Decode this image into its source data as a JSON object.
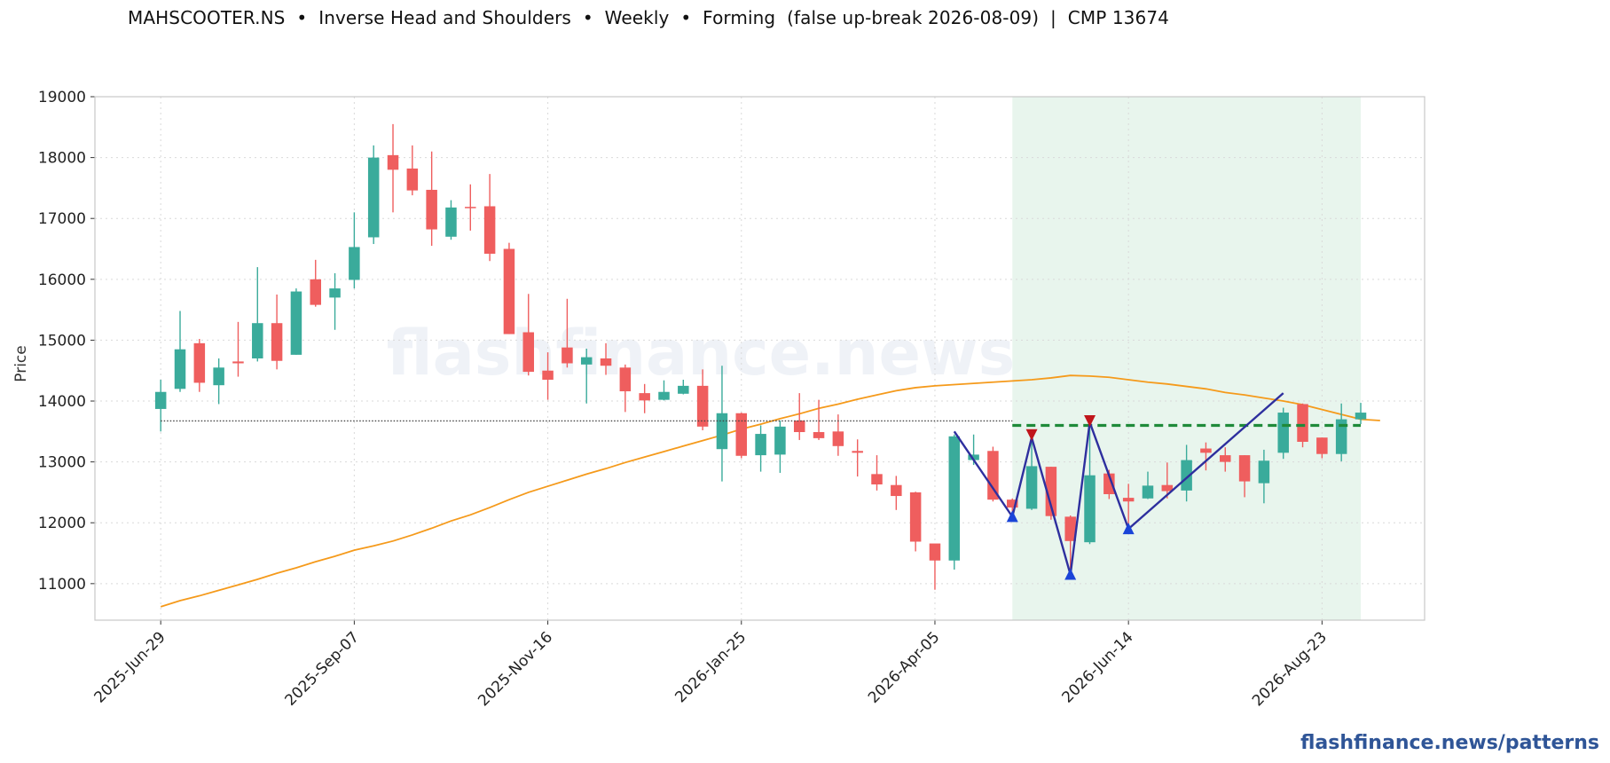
{
  "title": "MAHSCOOTER.NS  •  Inverse Head and Shoulders  •  Weekly  •  Forming  (false up-break 2026-08-09)  |  CMP 13674",
  "watermark": "flashfinance.news",
  "brand": "flashfinance.news/patterns",
  "colors": {
    "up": "#3aab9b",
    "down": "#ef5e5e",
    "ma": "#f59a1b",
    "neckline": "#1f8a3a",
    "pattern_line": "#2e2f9e",
    "trough_marker": "#1a44d8",
    "peak_marker": "#c0151b",
    "cmp_line": "#444444",
    "highlight": "#e4f3ea"
  },
  "chart_data": {
    "type": "candlestick",
    "ylabel": "Price",
    "ylim": [
      10400,
      19000
    ],
    "yticks": [
      11000,
      12000,
      13000,
      14000,
      15000,
      16000,
      17000,
      18000,
      19000
    ],
    "grid": true,
    "xtick_labels": [
      "2025-Jun-29",
      "2025-Sep-07",
      "2025-Nov-16",
      "2026-Jan-25",
      "2026-Apr-05",
      "2026-Jun-14",
      "2026-Aug-23"
    ],
    "xtick_positions": [
      0,
      10,
      20,
      30,
      40,
      50,
      60
    ],
    "cmp": 13674,
    "neckline": {
      "value": 13600,
      "from_index": 44,
      "to_index": 62
    },
    "pattern_window": {
      "from_index": 44,
      "to_index": 62
    },
    "candles": [
      {
        "date": "2025-Jun-29",
        "o": 13870,
        "h": 14350,
        "l": 13500,
        "c": 14150
      },
      {
        "date": "2025-Jul-06",
        "o": 14200,
        "h": 15480,
        "l": 14150,
        "c": 14850
      },
      {
        "date": "2025-Jul-13",
        "o": 14950,
        "h": 15020,
        "l": 14150,
        "c": 14300
      },
      {
        "date": "2025-Jul-20",
        "o": 14260,
        "h": 14700,
        "l": 13950,
        "c": 14550
      },
      {
        "date": "2025-Jul-27",
        "o": 14650,
        "h": 15300,
        "l": 14400,
        "c": 14620
      },
      {
        "date": "2025-Aug-03",
        "o": 14700,
        "h": 16200,
        "l": 14650,
        "c": 15280
      },
      {
        "date": "2025-Aug-10",
        "o": 15280,
        "h": 15750,
        "l": 14520,
        "c": 14660
      },
      {
        "date": "2025-Aug-17",
        "o": 14760,
        "h": 15850,
        "l": 14760,
        "c": 15800
      },
      {
        "date": "2025-Aug-24",
        "o": 16000,
        "h": 16320,
        "l": 15550,
        "c": 15580
      },
      {
        "date": "2025-Aug-31",
        "o": 15700,
        "h": 16100,
        "l": 15170,
        "c": 15850
      },
      {
        "date": "2025-Sep-07",
        "o": 15990,
        "h": 17100,
        "l": 15850,
        "c": 16530
      },
      {
        "date": "2025-Sep-14",
        "o": 16690,
        "h": 18200,
        "l": 16580,
        "c": 18000
      },
      {
        "date": "2025-Sep-21",
        "o": 18040,
        "h": 18550,
        "l": 17100,
        "c": 17800
      },
      {
        "date": "2025-Sep-28",
        "o": 17820,
        "h": 18200,
        "l": 17380,
        "c": 17460
      },
      {
        "date": "2025-Oct-05",
        "o": 17470,
        "h": 18100,
        "l": 16550,
        "c": 16820
      },
      {
        "date": "2025-Oct-12",
        "o": 16700,
        "h": 17300,
        "l": 16650,
        "c": 17180
      },
      {
        "date": "2025-Oct-19",
        "o": 17190,
        "h": 17560,
        "l": 16800,
        "c": 17170
      },
      {
        "date": "2025-Oct-26",
        "o": 17200,
        "h": 17730,
        "l": 16300,
        "c": 16420
      },
      {
        "date": "2025-Nov-02",
        "o": 16500,
        "h": 16600,
        "l": 15100,
        "c": 15100
      },
      {
        "date": "2025-Nov-09",
        "o": 15130,
        "h": 15760,
        "l": 14420,
        "c": 14480
      },
      {
        "date": "2025-Nov-16",
        "o": 14500,
        "h": 14800,
        "l": 14020,
        "c": 14350
      },
      {
        "date": "2025-Nov-23",
        "o": 14880,
        "h": 15680,
        "l": 14550,
        "c": 14620
      },
      {
        "date": "2025-Nov-30",
        "o": 14600,
        "h": 14860,
        "l": 13960,
        "c": 14720
      },
      {
        "date": "2025-Dec-07",
        "o": 14700,
        "h": 14950,
        "l": 14430,
        "c": 14580
      },
      {
        "date": "2025-Dec-14",
        "o": 14550,
        "h": 14600,
        "l": 13820,
        "c": 14160
      },
      {
        "date": "2025-Dec-21",
        "o": 14130,
        "h": 14280,
        "l": 13800,
        "c": 14010
      },
      {
        "date": "2025-Dec-28",
        "o": 14020,
        "h": 14340,
        "l": 14010,
        "c": 14150
      },
      {
        "date": "2026-Jan-04",
        "o": 14120,
        "h": 14350,
        "l": 14110,
        "c": 14250
      },
      {
        "date": "2026-Jan-11",
        "o": 14250,
        "h": 14520,
        "l": 13520,
        "c": 13580
      },
      {
        "date": "2026-Jan-18",
        "o": 13210,
        "h": 14580,
        "l": 12680,
        "c": 13800
      },
      {
        "date": "2026-Jan-25",
        "o": 13800,
        "h": 13810,
        "l": 13060,
        "c": 13100
      },
      {
        "date": "2026-Feb-01",
        "o": 13110,
        "h": 13600,
        "l": 12840,
        "c": 13460
      },
      {
        "date": "2026-Feb-08",
        "o": 13120,
        "h": 13680,
        "l": 12820,
        "c": 13580
      },
      {
        "date": "2026-Feb-15",
        "o": 13680,
        "h": 14130,
        "l": 13360,
        "c": 13490
      },
      {
        "date": "2026-Feb-22",
        "o": 13490,
        "h": 14020,
        "l": 13360,
        "c": 13390
      },
      {
        "date": "2026-Mar-01",
        "o": 13500,
        "h": 13780,
        "l": 13100,
        "c": 13260
      },
      {
        "date": "2026-Mar-08",
        "o": 13180,
        "h": 13370,
        "l": 12760,
        "c": 13150
      },
      {
        "date": "2026-Mar-15",
        "o": 12800,
        "h": 13110,
        "l": 12530,
        "c": 12630
      },
      {
        "date": "2026-Mar-22",
        "o": 12620,
        "h": 12770,
        "l": 12210,
        "c": 12440
      },
      {
        "date": "2026-Mar-29",
        "o": 12500,
        "h": 12510,
        "l": 11530,
        "c": 11690
      },
      {
        "date": "2026-Apr-05",
        "o": 11660,
        "h": 11650,
        "l": 10900,
        "c": 11380
      },
      {
        "date": "2026-Apr-12",
        "o": 11380,
        "h": 13450,
        "l": 11230,
        "c": 13420
      },
      {
        "date": "2026-Apr-19",
        "o": 13030,
        "h": 13450,
        "l": 12950,
        "c": 13120
      },
      {
        "date": "2026-Apr-26",
        "o": 13180,
        "h": 13250,
        "l": 12350,
        "c": 12380
      },
      {
        "date": "2026-May-03",
        "o": 12380,
        "h": 12400,
        "l": 12110,
        "c": 12250
      },
      {
        "date": "2026-May-10",
        "o": 12230,
        "h": 13350,
        "l": 12210,
        "c": 12930
      },
      {
        "date": "2026-May-17",
        "o": 12920,
        "h": 12920,
        "l": 12050,
        "c": 12110
      },
      {
        "date": "2026-May-24",
        "o": 12100,
        "h": 12120,
        "l": 11180,
        "c": 11700
      },
      {
        "date": "2026-May-31",
        "o": 11680,
        "h": 13650,
        "l": 11650,
        "c": 12780
      },
      {
        "date": "2026-Jun-07",
        "o": 12810,
        "h": 12870,
        "l": 12390,
        "c": 12470
      },
      {
        "date": "2026-Jun-14",
        "o": 12410,
        "h": 12640,
        "l": 11960,
        "c": 12350
      },
      {
        "date": "2026-Jun-21",
        "o": 12400,
        "h": 12840,
        "l": 12390,
        "c": 12610
      },
      {
        "date": "2026-Jun-28",
        "o": 12620,
        "h": 12990,
        "l": 12400,
        "c": 12520
      },
      {
        "date": "2026-Jul-05",
        "o": 12530,
        "h": 13280,
        "l": 12350,
        "c": 13030
      },
      {
        "date": "2026-Jul-12",
        "o": 13220,
        "h": 13320,
        "l": 12860,
        "c": 13150
      },
      {
        "date": "2026-Jul-19",
        "o": 13110,
        "h": 13240,
        "l": 12840,
        "c": 13000
      },
      {
        "date": "2026-Jul-26",
        "o": 13110,
        "h": 13110,
        "l": 12420,
        "c": 12680
      },
      {
        "date": "2026-Aug-02",
        "o": 12650,
        "h": 13200,
        "l": 12320,
        "c": 13020
      },
      {
        "date": "2026-Aug-09",
        "o": 13150,
        "h": 13890,
        "l": 13050,
        "c": 13810
      },
      {
        "date": "2026-Aug-16",
        "o": 13950,
        "h": 13960,
        "l": 13240,
        "c": 13330
      },
      {
        "date": "2026-Aug-23",
        "o": 13400,
        "h": 13400,
        "l": 13060,
        "c": 13130
      },
      {
        "date": "2026-Aug-30",
        "o": 13130,
        "h": 13960,
        "l": 13010,
        "c": 13700
      },
      {
        "date": "2026-Sep-06",
        "o": 13700,
        "h": 13970,
        "l": 13620,
        "c": 13810
      }
    ],
    "moving_average": [
      [
        0,
        10620
      ],
      [
        1,
        10720
      ],
      [
        2,
        10800
      ],
      [
        3,
        10890
      ],
      [
        4,
        10980
      ],
      [
        5,
        11070
      ],
      [
        6,
        11170
      ],
      [
        7,
        11260
      ],
      [
        8,
        11360
      ],
      [
        9,
        11450
      ],
      [
        10,
        11550
      ],
      [
        11,
        11620
      ],
      [
        12,
        11700
      ],
      [
        13,
        11800
      ],
      [
        14,
        11910
      ],
      [
        15,
        12030
      ],
      [
        16,
        12130
      ],
      [
        17,
        12250
      ],
      [
        18,
        12380
      ],
      [
        19,
        12500
      ],
      [
        20,
        12600
      ],
      [
        21,
        12700
      ],
      [
        22,
        12800
      ],
      [
        23,
        12890
      ],
      [
        24,
        12990
      ],
      [
        25,
        13080
      ],
      [
        26,
        13170
      ],
      [
        27,
        13260
      ],
      [
        28,
        13350
      ],
      [
        29,
        13440
      ],
      [
        30,
        13540
      ],
      [
        31,
        13620
      ],
      [
        32,
        13710
      ],
      [
        33,
        13790
      ],
      [
        34,
        13880
      ],
      [
        35,
        13950
      ],
      [
        36,
        14030
      ],
      [
        37,
        14100
      ],
      [
        38,
        14170
      ],
      [
        39,
        14220
      ],
      [
        40,
        14250
      ],
      [
        41,
        14270
      ],
      [
        42,
        14290
      ],
      [
        43,
        14310
      ],
      [
        44,
        14330
      ],
      [
        45,
        14350
      ],
      [
        46,
        14380
      ],
      [
        47,
        14420
      ],
      [
        48,
        14410
      ],
      [
        49,
        14390
      ],
      [
        50,
        14350
      ],
      [
        51,
        14310
      ],
      [
        52,
        14280
      ],
      [
        53,
        14240
      ],
      [
        54,
        14200
      ],
      [
        55,
        14140
      ],
      [
        56,
        14100
      ],
      [
        57,
        14050
      ],
      [
        58,
        14000
      ],
      [
        59,
        13940
      ],
      [
        60,
        13860
      ],
      [
        61,
        13780
      ],
      [
        62,
        13700
      ],
      [
        63,
        13680
      ]
    ],
    "pattern_path": [
      [
        41,
        13500
      ],
      [
        44,
        12100
      ],
      [
        45,
        13400
      ],
      [
        47,
        11150
      ],
      [
        48,
        13650
      ],
      [
        50,
        11900
      ],
      [
        58,
        14130
      ]
    ],
    "troughs": [
      [
        44,
        12100
      ],
      [
        47,
        11150
      ],
      [
        50,
        11900
      ]
    ],
    "peaks": [
      [
        45,
        13450
      ],
      [
        48,
        13680
      ]
    ]
  }
}
